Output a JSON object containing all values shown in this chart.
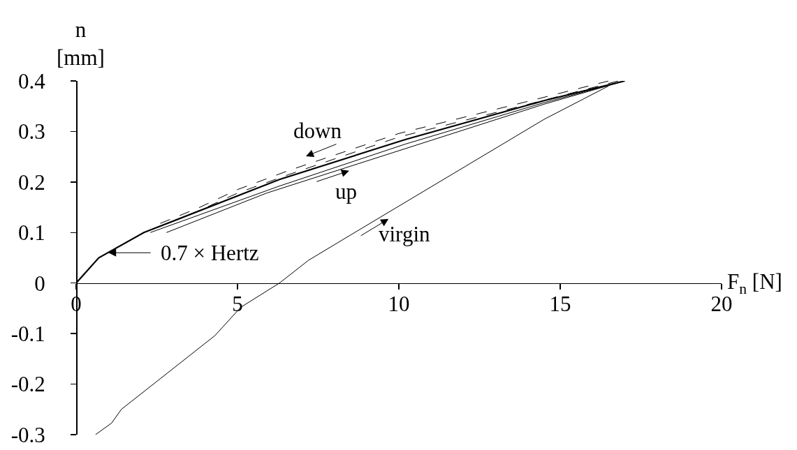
{
  "chart_data": {
    "type": "line",
    "xlabel": "F$_{n}$ [N]",
    "ylabel": "n\n[mm]",
    "xlim": [
      0,
      20
    ],
    "xticks": [
      0,
      5,
      10,
      15,
      20
    ],
    "ylim": [
      -0.3,
      0.4
    ],
    "yticks": [
      -0.3,
      -0.2,
      -0.1,
      0,
      0.1,
      0.2,
      0.3,
      0.4
    ],
    "grid": false,
    "marker": "none",
    "series": [
      {
        "color": "#000000",
        "line_style": "solid",
        "x": [
          0,
          0.7,
          2.1,
          6.3,
          10.2,
          14.5,
          17
        ],
        "values": [
          0,
          0.05,
          0.1,
          0.205,
          0.284,
          0.361,
          0.4
        ]
      },
      {
        "color": "#000000",
        "line_style": "solid",
        "x": [
          2.8,
          5.9,
          10.2,
          14.5,
          17
        ],
        "values": [
          0.1,
          0.178,
          0.266,
          0.354,
          0.4
        ]
      },
      {
        "color": "#000000",
        "line_style": "solid",
        "x": [
          2.3,
          6.3,
          10.2,
          14.5,
          17
        ],
        "values": [
          0.1,
          0.192,
          0.275,
          0.357,
          0.4
        ]
      },
      {
        "color": "#000000",
        "line_style": "dashed",
        "x": [
          16.5,
          13.9,
          10,
          6.6,
          5,
          3.8,
          2.3
        ],
        "values": [
          0.4,
          0.358,
          0.296,
          0.223,
          0.185,
          0.149,
          0.11
        ]
      },
      {
        "color": "#000000",
        "line_style": "dashed",
        "x": [
          16.8,
          13.9,
          10,
          6.6,
          5,
          3.8,
          2.1
        ],
        "values": [
          0.4,
          0.352,
          0.289,
          0.215,
          0.178,
          0.143,
          0.1
        ]
      },
      {
        "color": "#000000",
        "line_style": "solid",
        "x": [
          0.6,
          1.1,
          1.4,
          4.3,
          5.1,
          6.3,
          7.2,
          8.5,
          14.5,
          16.5
        ],
        "values": [
          -0.3,
          -0.277,
          -0.25,
          -0.104,
          -0.048,
          0,
          0.045,
          0.095,
          0.324,
          0.39
        ]
      }
    ],
    "annotations": [
      {
        "text": "0.7 × Hertz",
        "x": 1,
        "y": 0.06
      },
      "down",
      "up",
      "virgin"
    ]
  }
}
